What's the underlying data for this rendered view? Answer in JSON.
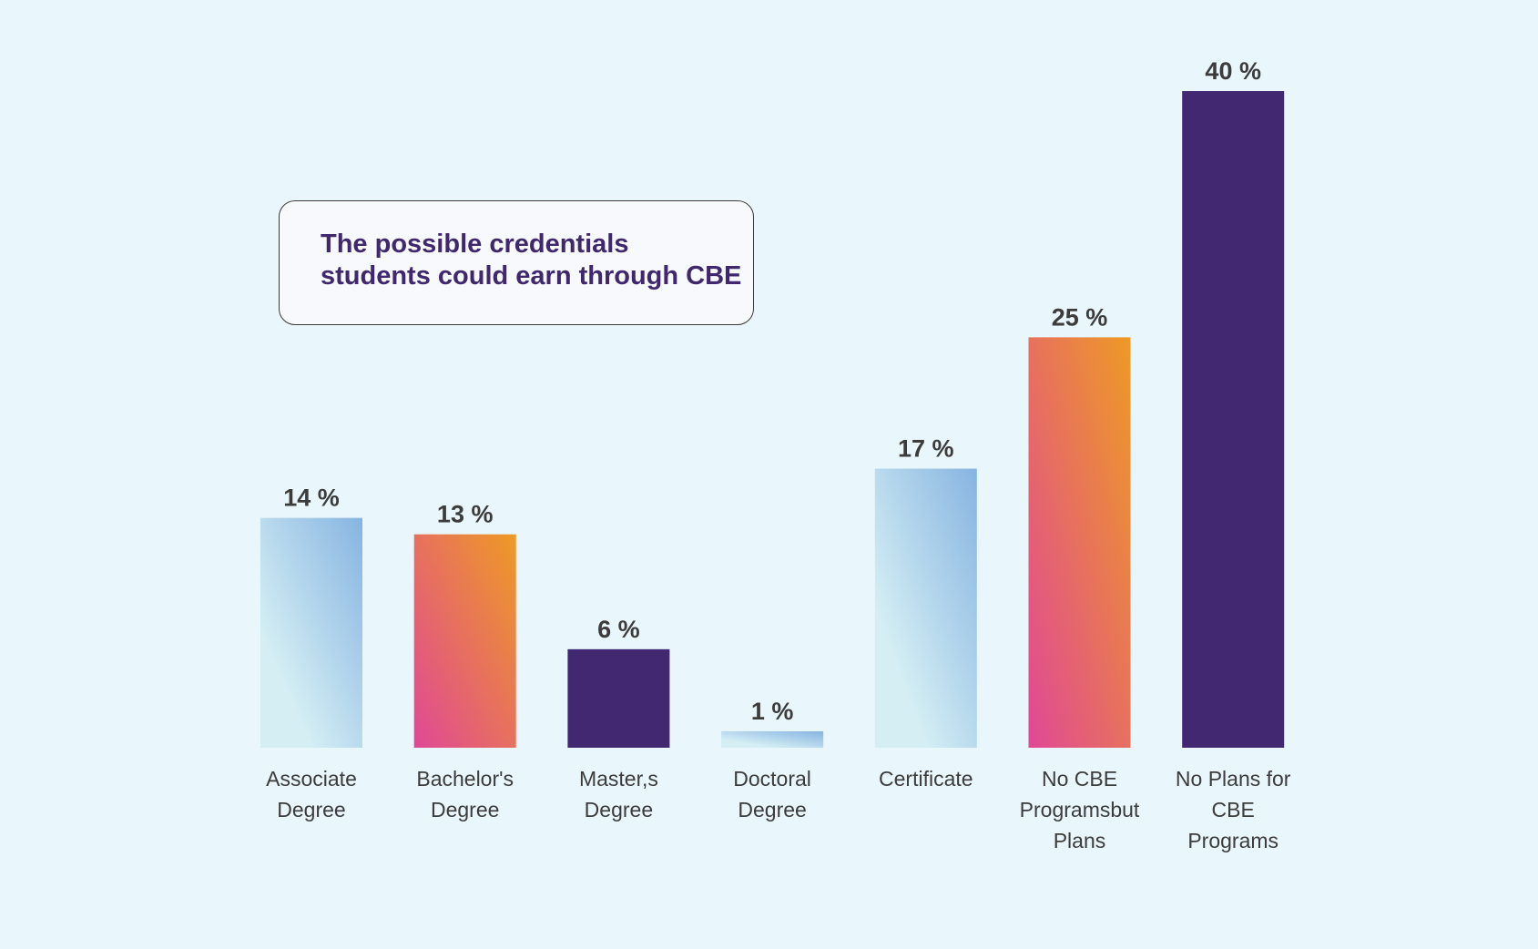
{
  "chart_data": {
    "type": "bar",
    "title_lines": [
      "The possible credentials",
      "students could earn through CBE"
    ],
    "categories": [
      [
        "Associate",
        "Degree"
      ],
      [
        "Bachelor's",
        "Degree"
      ],
      [
        "Master,s",
        "Degree"
      ],
      [
        "Doctoral",
        "Degree"
      ],
      [
        "Certificate"
      ],
      [
        "No CBE",
        "Programsbut",
        "Plans"
      ],
      [
        "No Plans for",
        "CBE",
        "Programs"
      ]
    ],
    "values": [
      14,
      13,
      6,
      1,
      17,
      25,
      40
    ],
    "value_labels": [
      "14 %",
      "13 %",
      "6 %",
      "1 %",
      "17 %",
      "25 %",
      "40 %"
    ],
    "bar_styles": [
      "blue-gradient",
      "orange-pink-gradient",
      "purple",
      "blue-gradient",
      "blue-gradient",
      "orange-pink-gradient",
      "purple"
    ],
    "colors": {
      "background": "#e9f6fc",
      "purple": "#412870",
      "blue_light": "#d4eef4",
      "blue_dark": "#86b4e1",
      "orange": "#ee9a25",
      "pink": "#e04896",
      "text": "#3c3c3c",
      "title": "#40286e"
    },
    "ylim": [
      0,
      40
    ],
    "grid": false,
    "legend": "none",
    "xlabel": "",
    "ylabel": ""
  }
}
